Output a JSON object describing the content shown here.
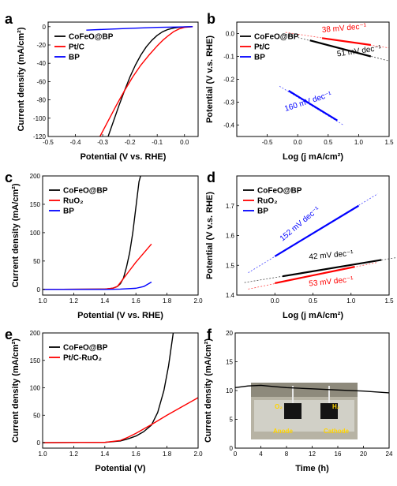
{
  "panels": [
    {
      "id": "a",
      "chart_data": {
        "type": "line",
        "xlabel": "Potential (V vs. RHE)",
        "ylabel": "Current density (mA/cm²)",
        "xlim": [
          -0.5,
          0.05
        ],
        "ylim": [
          -120,
          5
        ],
        "xticks": [
          -0.5,
          -0.4,
          -0.3,
          -0.2,
          -0.1,
          0.0
        ],
        "xtick_labels": [
          "-0.5",
          "-0.4",
          "-0.3",
          "-0.2",
          "-0.1",
          "0.0"
        ],
        "yticks": [
          -120,
          -100,
          -80,
          -60,
          -40,
          -20,
          0
        ],
        "ytick_labels": [
          "-120",
          "-100",
          "-80",
          "-60",
          "-40",
          "-20",
          "0"
        ],
        "legend_position": "top-left",
        "series": [
          {
            "name": "CoFeO@BP",
            "color": "#000000",
            "x": [
              -0.28,
              -0.26,
              -0.24,
              -0.22,
              -0.2,
              -0.18,
              -0.16,
              -0.14,
              -0.12,
              -0.1,
              -0.08,
              -0.06,
              -0.04,
              -0.02,
              0.0,
              0.03
            ],
            "y": [
              -120,
              -103,
              -86,
              -70,
              -55,
              -42,
              -31,
              -22,
              -15,
              -9.5,
              -5.5,
              -3,
              -1.5,
              -0.7,
              -0.2,
              0
            ]
          },
          {
            "name": "Pt/C",
            "color": "#ff0000",
            "x": [
              -0.31,
              -0.28,
              -0.25,
              -0.22,
              -0.19,
              -0.16,
              -0.13,
              -0.1,
              -0.08,
              -0.06,
              -0.04,
              -0.02,
              0.0,
              0.03
            ],
            "y": [
              -120,
              -103,
              -86,
              -70,
              -55,
              -42,
              -31,
              -21,
              -15,
              -10,
              -5.5,
              -2.5,
              -0.8,
              0
            ]
          },
          {
            "name": "BP",
            "color": "#0000ff",
            "x": [
              -0.36,
              -0.3,
              -0.2,
              -0.1,
              0.0,
              0.03
            ],
            "y": [
              -3.8,
              -3.0,
              -1.8,
              -0.8,
              -0.2,
              0
            ]
          }
        ]
      }
    },
    {
      "id": "b",
      "chart_data": {
        "type": "line",
        "xlabel": "Log (j mA/cm²)",
        "ylabel": "Potential (V v.s. RHE)",
        "xlim": [
          -1.0,
          1.5
        ],
        "ylim": [
          -0.45,
          0.05
        ],
        "xticks": [
          -0.5,
          0.0,
          0.5,
          1.0,
          1.5
        ],
        "xtick_labels": [
          "-0.5",
          "0.0",
          "0.5",
          "1.0",
          "1.5"
        ],
        "yticks": [
          0.0,
          -0.1,
          -0.2,
          -0.3,
          -0.4
        ],
        "ytick_labels": [
          "0.0",
          "-0.1",
          "-0.2",
          "-0.3",
          "-0.4"
        ],
        "legend_position": "top-left",
        "series": [
          {
            "name": "CoFeO@BP",
            "color": "#000000",
            "x": [
              0.2,
              1.2
            ],
            "y": [
              -0.03,
              -0.1
            ],
            "fit_x": [
              -0.25,
              1.5
            ],
            "fit_y": [
              0.0,
              -0.12
            ]
          },
          {
            "name": "Pt/C",
            "color": "#ff0000",
            "x": [
              0.4,
              1.2
            ],
            "y": [
              -0.02,
              -0.05
            ],
            "fit_x": [
              -0.2,
              1.5
            ],
            "fit_y": [
              0.005,
              -0.063
            ]
          },
          {
            "name": "BP",
            "color": "#0000ff",
            "x": [
              -0.15,
              0.65
            ],
            "y": [
              -0.25,
              -0.38
            ],
            "fit_x": [
              -0.3,
              0.75
            ],
            "fit_y": [
              -0.23,
              -0.4
            ]
          }
        ],
        "annotations": [
          {
            "text": "38 mV dec⁻¹",
            "color": "#ff0000",
            "x": 0.4,
            "y": 0.005,
            "rotate": -5
          },
          {
            "text": "51 mV dec⁻¹",
            "color": "#000000",
            "x": 0.65,
            "y": -0.1,
            "rotate": -8
          },
          {
            "text": "160 mV dec⁻¹",
            "color": "#0000ff",
            "x": -0.2,
            "y": -0.34,
            "rotate": -18
          }
        ]
      }
    },
    {
      "id": "c",
      "chart_data": {
        "type": "line",
        "xlabel": "Potential (V vs. RHE)",
        "ylabel": "Current density (mA/cm²)",
        "xlim": [
          1.0,
          2.0
        ],
        "ylim": [
          -10,
          200
        ],
        "xticks": [
          1.0,
          1.2,
          1.4,
          1.6,
          1.8,
          2.0
        ],
        "xtick_labels": [
          "1.0",
          "1.2",
          "1.4",
          "1.6",
          "1.8",
          "2.0"
        ],
        "yticks": [
          0,
          50,
          100,
          150,
          200
        ],
        "ytick_labels": [
          "0",
          "50",
          "100",
          "150",
          "200"
        ],
        "legend_position": "top-left",
        "series": [
          {
            "name": "CoFeO@BP",
            "color": "#000000",
            "x": [
              1.0,
              1.4,
              1.45,
              1.48,
              1.5,
              1.52,
              1.54,
              1.56,
              1.58,
              1.6,
              1.62,
              1.63
            ],
            "y": [
              0,
              0.5,
              2,
              5,
              10,
              20,
              40,
              65,
              100,
              145,
              190,
              200
            ]
          },
          {
            "name": "RuO₂",
            "color": "#ff0000",
            "x": [
              1.0,
              1.4,
              1.45,
              1.48,
              1.5,
              1.55,
              1.6,
              1.65,
              1.7
            ],
            "y": [
              0,
              0.5,
              2,
              5,
              12,
              30,
              48,
              64,
              80
            ]
          },
          {
            "name": "BP",
            "color": "#0000ff",
            "x": [
              1.0,
              1.4,
              1.5,
              1.6,
              1.65,
              1.7
            ],
            "y": [
              0,
              0,
              0.5,
              2,
              5,
              13
            ]
          }
        ]
      }
    },
    {
      "id": "d",
      "chart_data": {
        "type": "line",
        "xlabel": "Log (j mA/cm²)",
        "ylabel": "Potential (V v.s. RHE)",
        "xlim": [
          -0.5,
          1.5
        ],
        "ylim": [
          1.4,
          1.8
        ],
        "xticks": [
          0.0,
          0.5,
          1.0,
          1.5
        ],
        "xtick_labels": [
          "0.0",
          "0.5",
          "1.0",
          "1.5"
        ],
        "yticks": [
          1.4,
          1.5,
          1.6,
          1.7
        ],
        "ytick_labels": [
          "1.4",
          "1.5",
          "1.6",
          "1.7"
        ],
        "legend_position": "top-left",
        "series": [
          {
            "name": "CoFeO@BP",
            "color": "#000000",
            "x": [
              0.1,
              1.4
            ],
            "y": [
              1.463,
              1.518
            ],
            "fit_x": [
              -0.4,
              1.6
            ],
            "fit_y": [
              1.442,
              1.526
            ]
          },
          {
            "name": "RuO₂",
            "color": "#ff0000",
            "x": [
              0.0,
              1.05
            ],
            "y": [
              1.44,
              1.495
            ],
            "fit_x": [
              -0.35,
              1.35
            ],
            "fit_y": [
              1.42,
              1.51
            ]
          },
          {
            "name": "BP",
            "color": "#0000ff",
            "x": [
              0.0,
              1.1
            ],
            "y": [
              1.53,
              1.7
            ],
            "fit_x": [
              -0.35,
              1.35
            ],
            "fit_y": [
              1.475,
              1.74
            ]
          }
        ],
        "annotations": [
          {
            "text": "152 mV dec⁻¹",
            "color": "#0000ff",
            "x": 0.1,
            "y": 1.58,
            "rotate": -40
          },
          {
            "text": "42 mV dec⁻¹",
            "color": "#000000",
            "x": 0.45,
            "y": 1.52,
            "rotate": -5
          },
          {
            "text": "53 mV dec⁻¹",
            "color": "#ff0000",
            "x": 0.45,
            "y": 1.43,
            "rotate": -6
          }
        ]
      }
    },
    {
      "id": "e",
      "chart_data": {
        "type": "line",
        "xlabel": "Potential (V)",
        "ylabel": "Current density (mA/cm²)",
        "xlim": [
          1.0,
          2.0
        ],
        "ylim": [
          -10,
          200
        ],
        "xticks": [
          1.0,
          1.2,
          1.4,
          1.6,
          1.8,
          2.0
        ],
        "xtick_labels": [
          "1.0",
          "1.2",
          "1.4",
          "1.6",
          "1.8",
          "2.0"
        ],
        "yticks": [
          0,
          50,
          100,
          150,
          200
        ],
        "ytick_labels": [
          "0",
          "50",
          "100",
          "150",
          "200"
        ],
        "legend_position": "top-left",
        "series": [
          {
            "name": "CoFeO@BP",
            "color": "#000000",
            "x": [
              1.0,
              1.4,
              1.5,
              1.55,
              1.6,
              1.65,
              1.7,
              1.74,
              1.78,
              1.81,
              1.84
            ],
            "y": [
              0,
              0.5,
              3,
              7,
              12,
              20,
              32,
              55,
              95,
              140,
              200
            ]
          },
          {
            "name": "Pt/C-RuO₂",
            "color": "#ff0000",
            "x": [
              1.0,
              1.4,
              1.5,
              1.55,
              1.6,
              1.7,
              1.8,
              1.9,
              2.0
            ],
            "y": [
              0,
              0.5,
              4,
              10,
              17,
              33,
              50,
              66,
              82
            ]
          }
        ]
      }
    },
    {
      "id": "f",
      "chart_data": {
        "type": "line",
        "xlabel": "Time (h)",
        "ylabel": "Current density (mA/cm²)",
        "xlim": [
          0,
          24
        ],
        "ylim": [
          0,
          20
        ],
        "xticks": [
          0,
          4,
          8,
          12,
          16,
          20,
          24
        ],
        "xtick_labels": [
          "0",
          "4",
          "8",
          "12",
          "16",
          "20",
          "24"
        ],
        "yticks": [
          0,
          5,
          10,
          15,
          20
        ],
        "ytick_labels": [
          "0",
          "5",
          "10",
          "15",
          "20"
        ],
        "series": [
          {
            "name": "",
            "color": "#000000",
            "x": [
              0,
              2,
              4,
              6,
              8,
              12,
              16,
              20,
              24
            ],
            "y": [
              10.5,
              10.8,
              10.9,
              10.7,
              10.5,
              10.3,
              10.1,
              9.9,
              9.6
            ]
          }
        ],
        "inset_labels": [
          "O₂",
          "H₂",
          "Anode",
          "Cathode"
        ]
      }
    }
  ]
}
